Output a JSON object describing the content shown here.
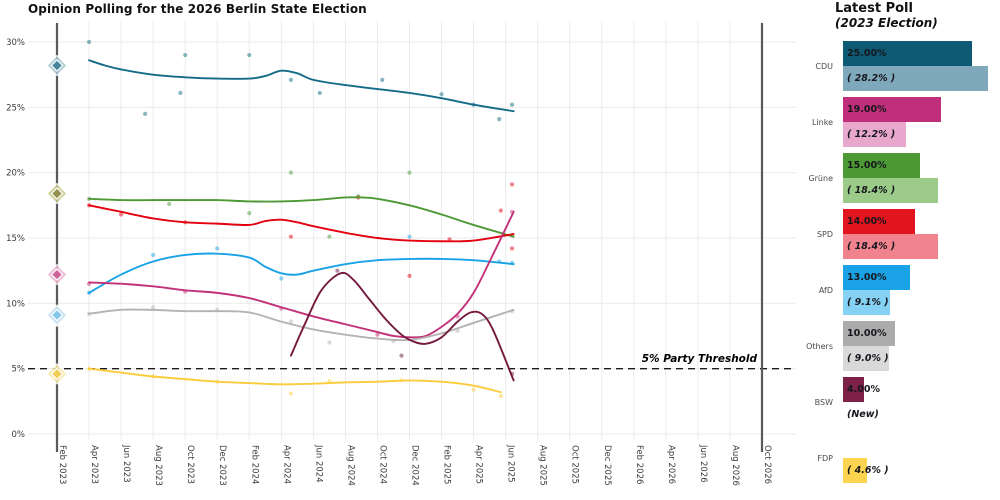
{
  "header": {
    "title": "Opinion Polling for the 2026 Berlin State Election"
  },
  "panel": {
    "title_line1": "Latest Poll",
    "title_line2": "(2023 Election)",
    "rows": [
      {
        "party": "CDU",
        "latest_label": "25.00%",
        "latest_value": 25.0,
        "latest_color": "#0e5a74",
        "election_label": "( 28.2% )",
        "election_value": 28.2,
        "election_color": "#7fa9bb"
      },
      {
        "party": "Linke",
        "latest_label": "19.00%",
        "latest_value": 19.0,
        "latest_color": "#c02f7b",
        "election_label": "( 12.2% )",
        "election_value": 12.2,
        "election_color": "#e8a8cd"
      },
      {
        "party": "Grüne",
        "latest_label": "15.00%",
        "latest_value": 15.0,
        "latest_color": "#4d9a35",
        "election_label": "( 18.4% )",
        "election_value": 18.4,
        "election_color": "#9cca89"
      },
      {
        "party": "SPD",
        "latest_label": "14.00%",
        "latest_value": 14.0,
        "latest_color": "#e2141f",
        "election_label": "( 18.4% )",
        "election_value": 18.4,
        "election_color": "#f0838d"
      },
      {
        "party": "AfD",
        "latest_label": "13.00%",
        "latest_value": 13.0,
        "latest_color": "#19a2e6",
        "election_label": "( 9.1% )",
        "election_value": 9.1,
        "election_color": "#85d2f4"
      },
      {
        "party": "Others",
        "latest_label": "10.00%",
        "latest_value": 10.0,
        "latest_color": "#acacac",
        "election_label": "( 9.0% )",
        "election_value": 9.0,
        "election_color": "#d9d9d9"
      },
      {
        "party": "BSW",
        "latest_label": "4.00%",
        "latest_value": 4.0,
        "latest_color": "#7e2148",
        "election_label": "(New)",
        "election_value": null,
        "election_color": null
      },
      {
        "party": "FDP",
        "latest_label": null,
        "latest_value": null,
        "latest_color": null,
        "election_label": "( 4.6% )",
        "election_value": 4.6,
        "election_color": "#fcd44f"
      }
    ]
  },
  "chart_data": {
    "type": "line",
    "title": "Opinion Polling for the 2026 Berlin State Election",
    "x_tick_labels": [
      "Feb 2023",
      "Apr 2023",
      "Jun 2023",
      "Aug 2023",
      "Oct 2023",
      "Dec 2023",
      "Feb 2024",
      "Apr 2024",
      "Jun 2024",
      "Aug 2024",
      "Oct 2024",
      "Dec 2024",
      "Feb 2025",
      "Apr 2025",
      "Jun 2025",
      "Aug 2025",
      "Oct 2025",
      "Dec 2025",
      "Feb 2026",
      "Apr 2026",
      "Jun 2026",
      "Aug 2026",
      "Oct 2026"
    ],
    "x_tick_months": [
      0,
      2,
      4,
      6,
      8,
      10,
      12,
      14,
      16,
      18,
      20,
      22,
      24,
      26,
      28,
      30,
      32,
      34,
      36,
      38,
      40,
      42,
      44
    ],
    "y_tick_labels": [
      "0%",
      "5%",
      "10%",
      "15%",
      "20%",
      "25%",
      "30%"
    ],
    "y_tick_values": [
      0,
      5,
      10,
      15,
      20,
      25,
      30
    ],
    "ylim": [
      0,
      30
    ],
    "grid": true,
    "threshold": {
      "value": 5,
      "label": "5% Party Threshold"
    },
    "election_lines": [
      {
        "month": 0,
        "label": "Feb 2023"
      },
      {
        "month": 44,
        "label": "Oct 2026"
      }
    ],
    "series": [
      {
        "name": "CDU",
        "color": "#136b88",
        "points": [
          [
            2,
            28.6
          ],
          [
            3,
            28.2
          ],
          [
            4,
            27.9
          ],
          [
            6,
            27.5
          ],
          [
            8,
            27.3
          ],
          [
            10,
            27.2
          ],
          [
            12,
            27.2
          ],
          [
            13,
            27.4
          ],
          [
            14,
            27.8
          ],
          [
            15,
            27.6
          ],
          [
            16,
            27.1
          ],
          [
            18,
            26.7
          ],
          [
            20,
            26.4
          ],
          [
            22,
            26.1
          ],
          [
            24,
            25.7
          ],
          [
            26,
            25.2
          ],
          [
            28.5,
            24.7
          ]
        ]
      },
      {
        "name": "Grüne",
        "color": "#4d9a35",
        "points": [
          [
            2,
            18.0
          ],
          [
            4,
            17.9
          ],
          [
            6,
            17.9
          ],
          [
            8,
            17.9
          ],
          [
            10,
            17.9
          ],
          [
            12,
            17.8
          ],
          [
            14,
            17.8
          ],
          [
            16,
            17.9
          ],
          [
            18,
            18.1
          ],
          [
            19,
            18.1
          ],
          [
            20,
            18.0
          ],
          [
            22,
            17.5
          ],
          [
            24,
            16.8
          ],
          [
            26,
            16.0
          ],
          [
            28.5,
            15.1
          ]
        ]
      },
      {
        "name": "SPD",
        "color": "#e3000f",
        "points": [
          [
            2,
            17.5
          ],
          [
            4,
            17.0
          ],
          [
            6,
            16.5
          ],
          [
            8,
            16.2
          ],
          [
            10,
            16.1
          ],
          [
            12,
            16.0
          ],
          [
            13,
            16.3
          ],
          [
            14,
            16.4
          ],
          [
            15,
            16.2
          ],
          [
            16,
            15.9
          ],
          [
            18,
            15.4
          ],
          [
            20,
            15.0
          ],
          [
            22,
            14.8
          ],
          [
            24,
            14.75
          ],
          [
            26,
            14.8
          ],
          [
            28.5,
            15.3
          ]
        ]
      },
      {
        "name": "AfD",
        "color": "#19a2e6",
        "points": [
          [
            2,
            10.8
          ],
          [
            4,
            12.2
          ],
          [
            6,
            13.2
          ],
          [
            8,
            13.7
          ],
          [
            10,
            13.8
          ],
          [
            12,
            13.5
          ],
          [
            13,
            12.8
          ],
          [
            14,
            12.3
          ],
          [
            15,
            12.2
          ],
          [
            16,
            12.5
          ],
          [
            18,
            13.0
          ],
          [
            20,
            13.3
          ],
          [
            22,
            13.4
          ],
          [
            24,
            13.4
          ],
          [
            26,
            13.3
          ],
          [
            28.5,
            13.0
          ]
        ]
      },
      {
        "name": "Linke",
        "color": "#c23078",
        "points": [
          [
            2,
            11.6
          ],
          [
            4,
            11.5
          ],
          [
            6,
            11.3
          ],
          [
            8,
            11.0
          ],
          [
            10,
            10.8
          ],
          [
            12,
            10.4
          ],
          [
            14,
            9.7
          ],
          [
            16,
            9.0
          ],
          [
            18,
            8.4
          ],
          [
            20,
            7.8
          ],
          [
            21,
            7.5
          ],
          [
            22,
            7.4
          ],
          [
            23,
            7.5
          ],
          [
            24,
            8.2
          ],
          [
            25,
            9.2
          ],
          [
            26,
            10.8
          ],
          [
            27,
            13.2
          ],
          [
            28.5,
            17.0
          ]
        ]
      },
      {
        "name": "Others",
        "color": "#b3b3b3",
        "points": [
          [
            2,
            9.2
          ],
          [
            4,
            9.5
          ],
          [
            6,
            9.5
          ],
          [
            8,
            9.4
          ],
          [
            10,
            9.4
          ],
          [
            12,
            9.3
          ],
          [
            14,
            8.6
          ],
          [
            16,
            8.0
          ],
          [
            18,
            7.6
          ],
          [
            20,
            7.3
          ],
          [
            22,
            7.2
          ],
          [
            24,
            7.7
          ],
          [
            26,
            8.5
          ],
          [
            28.5,
            9.5
          ]
        ]
      },
      {
        "name": "BSW",
        "color": "#75193f",
        "points": [
          [
            14.6,
            6.0
          ],
          [
            15.5,
            8.5
          ],
          [
            16.5,
            11.0
          ],
          [
            17.7,
            12.3
          ],
          [
            18.5,
            11.8
          ],
          [
            19.5,
            10.3
          ],
          [
            20.5,
            8.8
          ],
          [
            21.5,
            7.6
          ],
          [
            22.2,
            7.1
          ],
          [
            23,
            6.9
          ],
          [
            24,
            7.4
          ],
          [
            25,
            8.6
          ],
          [
            25.8,
            9.3
          ],
          [
            26.5,
            9.2
          ],
          [
            27.2,
            8.0
          ],
          [
            28.5,
            4.1
          ]
        ]
      },
      {
        "name": "FDP",
        "color": "#fbcc3c",
        "points": [
          [
            2,
            5.0
          ],
          [
            4,
            4.7
          ],
          [
            6,
            4.4
          ],
          [
            8,
            4.2
          ],
          [
            10,
            4.0
          ],
          [
            12,
            3.9
          ],
          [
            14,
            3.8
          ],
          [
            16,
            3.85
          ],
          [
            18,
            3.95
          ],
          [
            20,
            4.0
          ],
          [
            22,
            4.1
          ],
          [
            24,
            4.0
          ],
          [
            26,
            3.7
          ],
          [
            27.7,
            3.2
          ]
        ]
      }
    ],
    "polls": [
      {
        "p": "CDU",
        "m": 2,
        "v": 30
      },
      {
        "p": "CDU",
        "m": 5.5,
        "v": 24.5
      },
      {
        "p": "CDU",
        "m": 7.7,
        "v": 26.1
      },
      {
        "p": "CDU",
        "m": 8,
        "v": 29
      },
      {
        "p": "CDU",
        "m": 12,
        "v": 29
      },
      {
        "p": "CDU",
        "m": 14.6,
        "v": 27.1
      },
      {
        "p": "CDU",
        "m": 16.4,
        "v": 26.1
      },
      {
        "p": "CDU",
        "m": 20.3,
        "v": 27.1
      },
      {
        "p": "CDU",
        "m": 24,
        "v": 26
      },
      {
        "p": "CDU",
        "m": 26,
        "v": 25.2
      },
      {
        "p": "CDU",
        "m": 27.6,
        "v": 24.1
      },
      {
        "p": "CDU",
        "m": 28.4,
        "v": 25.2
      },
      {
        "p": "Grüne",
        "m": 2,
        "v": 18
      },
      {
        "p": "Grüne",
        "m": 7,
        "v": 17.6
      },
      {
        "p": "Grüne",
        "m": 12,
        "v": 16.9
      },
      {
        "p": "Grüne",
        "m": 14.6,
        "v": 20
      },
      {
        "p": "Grüne",
        "m": 17,
        "v": 15.1
      },
      {
        "p": "Grüne",
        "m": 18.8,
        "v": 18.2
      },
      {
        "p": "Grüne",
        "m": 22,
        "v": 20
      },
      {
        "p": "Grüne",
        "m": 28.4,
        "v": 15.2
      },
      {
        "p": "SPD",
        "m": 2,
        "v": 17.5
      },
      {
        "p": "SPD",
        "m": 4,
        "v": 16.8
      },
      {
        "p": "SPD",
        "m": 8,
        "v": 16.2
      },
      {
        "p": "SPD",
        "m": 14.6,
        "v": 15.1
      },
      {
        "p": "SPD",
        "m": 18.8,
        "v": 18.1
      },
      {
        "p": "SPD",
        "m": 22,
        "v": 12.1
      },
      {
        "p": "SPD",
        "m": 24.5,
        "v": 14.9
      },
      {
        "p": "SPD",
        "m": 27.7,
        "v": 17.1
      },
      {
        "p": "SPD",
        "m": 28.4,
        "v": 19.1
      },
      {
        "p": "SPD",
        "m": 28.4,
        "v": 14.2
      },
      {
        "p": "AfD",
        "m": 2,
        "v": 10.8
      },
      {
        "p": "AfD",
        "m": 6,
        "v": 13.7
      },
      {
        "p": "AfD",
        "m": 10,
        "v": 14.2
      },
      {
        "p": "AfD",
        "m": 14,
        "v": 11.9
      },
      {
        "p": "AfD",
        "m": 22,
        "v": 15.1
      },
      {
        "p": "AfD",
        "m": 27.6,
        "v": 13.2
      },
      {
        "p": "AfD",
        "m": 28.4,
        "v": 13.1
      },
      {
        "p": "Linke",
        "m": 2,
        "v": 11.5
      },
      {
        "p": "Linke",
        "m": 8,
        "v": 10.9
      },
      {
        "p": "Linke",
        "m": 14,
        "v": 9.6
      },
      {
        "p": "Linke",
        "m": 20,
        "v": 7.6
      },
      {
        "p": "Linke",
        "m": 25,
        "v": 9
      },
      {
        "p": "Linke",
        "m": 28.4,
        "v": 17
      },
      {
        "p": "Others",
        "m": 2,
        "v": 9.2
      },
      {
        "p": "Others",
        "m": 6,
        "v": 9.7
      },
      {
        "p": "Others",
        "m": 10,
        "v": 9.5
      },
      {
        "p": "Others",
        "m": 14.6,
        "v": 8.6
      },
      {
        "p": "Others",
        "m": 17,
        "v": 7
      },
      {
        "p": "Others",
        "m": 21,
        "v": 7.1
      },
      {
        "p": "Others",
        "m": 25,
        "v": 7.9
      },
      {
        "p": "Others",
        "m": 28.4,
        "v": 9.4
      },
      {
        "p": "BSW",
        "m": 17.5,
        "v": 12.5
      },
      {
        "p": "BSW",
        "m": 21.5,
        "v": 6
      },
      {
        "p": "BSW",
        "m": 28.4,
        "v": 4.6
      },
      {
        "p": "FDP",
        "m": 2,
        "v": 5
      },
      {
        "p": "FDP",
        "m": 6,
        "v": 4.4
      },
      {
        "p": "FDP",
        "m": 10,
        "v": 4
      },
      {
        "p": "FDP",
        "m": 14.6,
        "v": 3.1
      },
      {
        "p": "FDP",
        "m": 17,
        "v": 4.05
      },
      {
        "p": "FDP",
        "m": 21.5,
        "v": 4.1
      },
      {
        "p": "FDP",
        "m": 26,
        "v": 3.4
      },
      {
        "p": "FDP",
        "m": 27.7,
        "v": 2.9
      }
    ],
    "election_2023_results": [
      {
        "party": "Others",
        "value": 9.0,
        "core": "#b5b5b5",
        "halo": "#dcdcdc"
      },
      {
        "party": "CDU",
        "value": 28.2,
        "core": "#45829b",
        "halo": "#a9c6d3"
      },
      {
        "party": "SPD+Grüne",
        "value": 18.4,
        "core": "#8f8f4b",
        "halo": "#c9c98c"
      },
      {
        "party": "Linke",
        "value": 12.2,
        "core": "#d0609c",
        "halo": "#ecb3d1"
      },
      {
        "party": "AfD",
        "value": 9.1,
        "core": "#85c6e8",
        "halo": "#c3e4f4"
      },
      {
        "party": "FDP",
        "value": 4.6,
        "core": "#f2ce53",
        "halo": "#f9e9a8"
      }
    ]
  }
}
